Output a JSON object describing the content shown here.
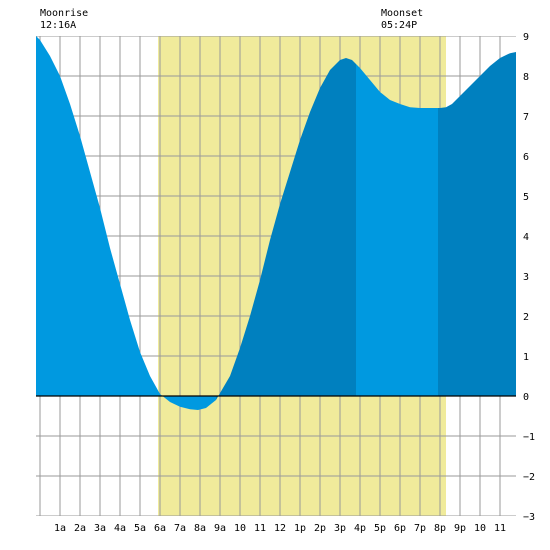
{
  "chart_data": {
    "type": "area",
    "moonrise": {
      "label": "Moonrise",
      "time": "12:16A"
    },
    "moonset": {
      "label": "Moonset",
      "time": "05:24P"
    },
    "x_unit": "hour of day",
    "xlim": [
      -0.2,
      23.8
    ],
    "ylim": [
      -3,
      9
    ],
    "x_tick_labels": [
      "1a",
      "2a",
      "3a",
      "4a",
      "5a",
      "6a",
      "7a",
      "8a",
      "9a",
      "10",
      "11",
      "12",
      "1p",
      "2p",
      "3p",
      "4p",
      "5p",
      "6p",
      "7p",
      "8p",
      "9p",
      "10",
      "11"
    ],
    "y_tick_labels": [
      "9",
      "8",
      "7",
      "6",
      "5",
      "4",
      "3",
      "2",
      "1",
      "0",
      "−1",
      "−2",
      "−3"
    ],
    "daylight": {
      "start": 5.9,
      "end": 20.3
    },
    "tide_curve": {
      "x": [
        -0.2,
        0,
        0.5,
        1,
        1.5,
        2,
        2.5,
        3,
        3.5,
        4,
        4.5,
        5,
        5.5,
        6,
        6.5,
        7,
        7.5,
        7.9,
        8.3,
        8.8,
        9.5,
        10,
        10.5,
        11,
        11.5,
        12,
        12.5,
        13,
        13.5,
        14,
        14.5,
        15,
        15.3,
        15.6,
        16,
        16.5,
        17,
        17.5,
        18,
        18.5,
        19,
        19.5,
        20,
        20.3,
        20.6,
        21,
        21.5,
        22,
        22.5,
        23,
        23.5,
        23.8
      ],
      "y": [
        9.0,
        8.9,
        8.5,
        8.0,
        7.3,
        6.5,
        5.6,
        4.7,
        3.7,
        2.8,
        1.9,
        1.1,
        0.5,
        0.05,
        -0.15,
        -0.27,
        -0.33,
        -0.35,
        -0.3,
        -0.1,
        0.5,
        1.2,
        2.0,
        2.9,
        3.9,
        4.8,
        5.6,
        6.4,
        7.1,
        7.7,
        8.15,
        8.4,
        8.45,
        8.4,
        8.2,
        7.9,
        7.6,
        7.4,
        7.3,
        7.22,
        7.2,
        7.2,
        7.2,
        7.22,
        7.3,
        7.5,
        7.75,
        8.0,
        8.25,
        8.45,
        8.57,
        8.6
      ]
    },
    "shading_bands": [
      {
        "from": -0.2,
        "to": 8.8,
        "color": "#0099e0"
      },
      {
        "from": 8.8,
        "to": 15.8,
        "color": "#0080bf"
      },
      {
        "from": 15.8,
        "to": 19.9,
        "color": "#0099e0"
      },
      {
        "from": 19.9,
        "to": 23.8,
        "color": "#0080bf"
      }
    ],
    "colors": {
      "daylight": "#f0eb9b",
      "grid": "#999999",
      "zero_line": "#000000",
      "text": "#000000"
    }
  }
}
